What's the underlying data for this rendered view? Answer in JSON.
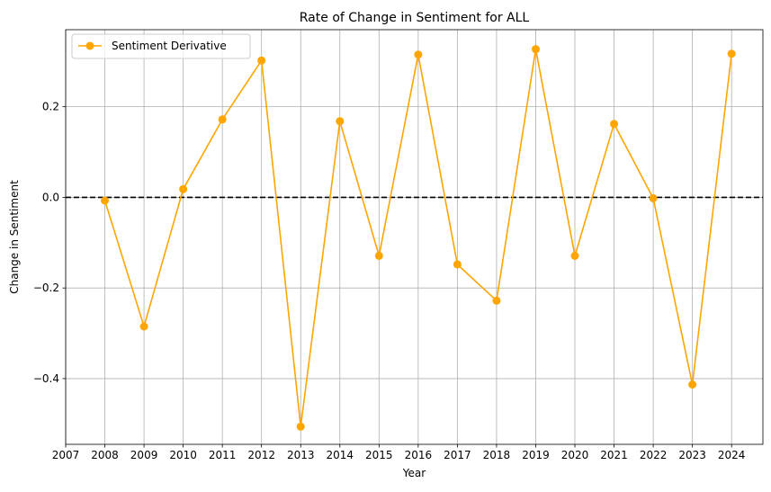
{
  "chart_data": {
    "type": "line",
    "title": "Rate of Change in Sentiment for ALL",
    "xlabel": "Year",
    "ylabel": "Change in Sentiment",
    "x_ticks": [
      2007,
      2008,
      2009,
      2010,
      2011,
      2012,
      2013,
      2014,
      2015,
      2016,
      2017,
      2018,
      2019,
      2020,
      2021,
      2022,
      2023,
      2024
    ],
    "y_ticks": [
      -0.4,
      -0.2,
      0.0,
      0.2
    ],
    "y_tick_labels": [
      "−0.4",
      "−0.2",
      "0.0",
      "0.2"
    ],
    "xlim": [
      2007,
      2024.8
    ],
    "ylim": [
      -0.545,
      0.37
    ],
    "grid": true,
    "legend_position": "top-left",
    "reference_line": {
      "y": 0.0,
      "style": "dashed",
      "color": "#000000"
    },
    "series": [
      {
        "name": "Sentiment Derivative",
        "color": "#ffa500",
        "marker": "circle",
        "x": [
          2008,
          2009,
          2010,
          2011,
          2012,
          2013,
          2014,
          2015,
          2016,
          2017,
          2018,
          2019,
          2020,
          2021,
          2022,
          2023,
          2024
        ],
        "y": [
          -0.007,
          -0.285,
          0.018,
          0.172,
          0.302,
          -0.506,
          0.168,
          -0.129,
          0.315,
          -0.148,
          -0.228,
          0.327,
          -0.129,
          0.162,
          -0.002,
          -0.413,
          0.317
        ]
      }
    ]
  }
}
